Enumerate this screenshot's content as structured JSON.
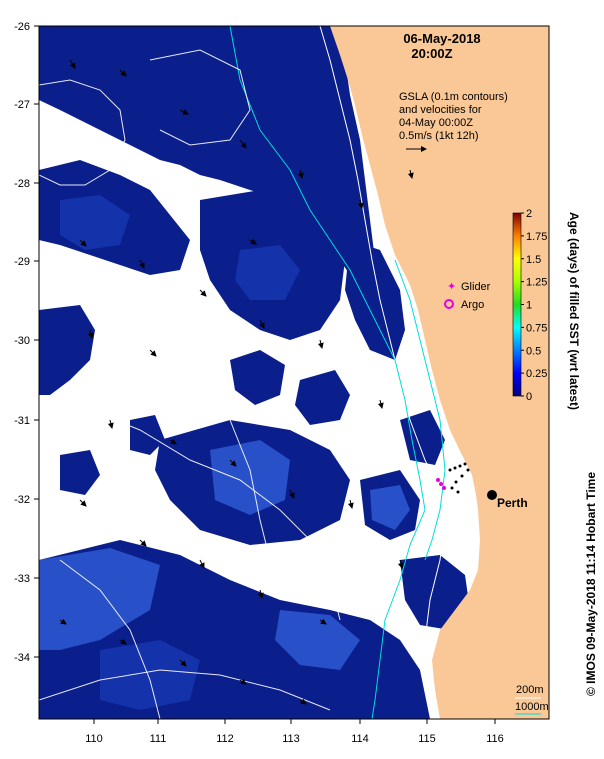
{
  "title": {
    "date": "06-May-2018",
    "time": "20:00Z"
  },
  "annotation": {
    "line1": "GSLA (0.1m contours)",
    "line2": "and velocities for",
    "line3": "04-May 00:00Z",
    "line4": "0.5m/s (1kt 12h)"
  },
  "legend": {
    "glider": "Glider",
    "argo": "Argo"
  },
  "city": "Perth",
  "bathymetry": {
    "shallow": "200m",
    "deep": "1000m"
  },
  "colorbar": {
    "label": "Age (days) of filled SST (wrt latest)",
    "ticks": [
      "2",
      "1.75",
      "1.5",
      "1.25",
      "1",
      "0.75",
      "0.5",
      "0.25",
      "0"
    ]
  },
  "axes": {
    "x_ticks": [
      "110",
      "111",
      "112",
      "113",
      "114",
      "115",
      "116"
    ],
    "y_ticks": [
      "-26",
      "-27",
      "-28",
      "-29",
      "-30",
      "-31",
      "-32",
      "-33",
      "-34"
    ]
  },
  "credit": "© IMOS 09-May-2018 11:14 Hobart Time",
  "colors": {
    "land": "#fac896",
    "sst_fresh": "#0a1e8c",
    "sst_patch": "#1432aa",
    "sst_older": "#2850c8",
    "isobath_200": "#ffffff",
    "isobath_1000": "#00dcdc",
    "glider": "#e600e6",
    "argo": "#e600e6"
  }
}
